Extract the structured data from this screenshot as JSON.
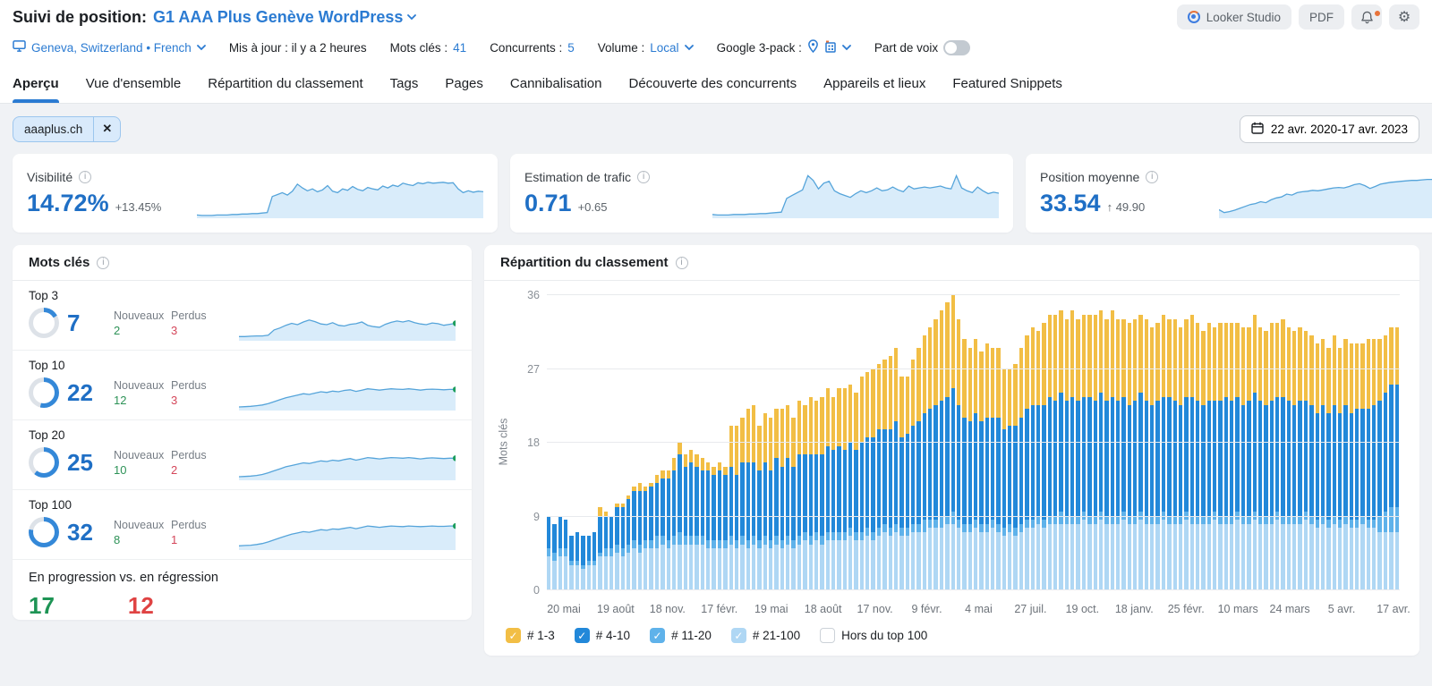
{
  "header": {
    "title_prefix": "Suivi de position:",
    "project_name": "G1 AAA Plus Genève WordPress",
    "looker_label": "Looker Studio",
    "pdf_label": "PDF"
  },
  "settings": {
    "location": "Geneva, Switzerland • French",
    "updated": "Mis à jour : il y a 2 heures",
    "keywords_label": "Mots clés :",
    "keywords_value": "41",
    "competitors_label": "Concurrents :",
    "competitors_value": "5",
    "volume_label": "Volume :",
    "volume_value": "Local",
    "google_pack_label": "Google 3-pack :",
    "voice_label": "Part de voix"
  },
  "tabs": [
    "Aperçu",
    "Vue d'ensemble",
    "Répartition du classement",
    "Tags",
    "Pages",
    "Cannibalisation",
    "Découverte des concurrents",
    "Appareils et lieux",
    "Featured Snippets"
  ],
  "filters": {
    "chip": "aaaplus.ch",
    "date_range": "22 avr. 2020-17 avr. 2023"
  },
  "metrics": [
    {
      "label": "Visibilité",
      "value": "14.72%",
      "delta": "+13.45%"
    },
    {
      "label": "Estimation de trafic",
      "value": "0.71",
      "delta": "+0.65"
    },
    {
      "label": "Position moyenne",
      "value": "33.54",
      "delta": "↑ 49.90"
    }
  ],
  "keywords_card": {
    "title": "Mots clés",
    "new_label": "Nouveaux",
    "lost_label": "Perdus",
    "rows": [
      {
        "label": "Top 3",
        "value": "7",
        "pct": 17,
        "new": "2",
        "lost": "3",
        "spark": [
          10,
          10,
          11,
          12,
          12,
          14,
          30,
          36,
          44,
          50,
          46,
          54,
          60,
          55,
          48,
          46,
          52,
          44,
          42,
          47,
          49,
          54,
          44,
          40,
          38,
          47,
          53,
          57,
          54,
          58,
          52,
          48,
          46,
          51,
          49,
          44,
          47,
          50
        ]
      },
      {
        "label": "Top 10",
        "value": "22",
        "pct": 54,
        "new": "12",
        "lost": "3",
        "spark": [
          8,
          9,
          10,
          12,
          14,
          18,
          24,
          30,
          36,
          40,
          44,
          48,
          46,
          50,
          54,
          52,
          56,
          54,
          58,
          60,
          55,
          59,
          63,
          61,
          59,
          61,
          63,
          62,
          61,
          63,
          61,
          59,
          61,
          62,
          61,
          60,
          61,
          61
        ]
      },
      {
        "label": "Top 20",
        "value": "25",
        "pct": 61,
        "new": "10",
        "lost": "2",
        "spark": [
          8,
          9,
          10,
          12,
          15,
          20,
          26,
          32,
          38,
          42,
          46,
          50,
          48,
          52,
          56,
          54,
          58,
          56,
          60,
          63,
          58,
          62,
          66,
          64,
          62,
          64,
          66,
          65,
          64,
          66,
          64,
          62,
          64,
          65,
          64,
          63,
          64,
          64
        ]
      },
      {
        "label": "Top 100",
        "value": "32",
        "pct": 78,
        "new": "8",
        "lost": "1",
        "spark": [
          10,
          11,
          12,
          14,
          17,
          22,
          28,
          34,
          40,
          45,
          49,
          53,
          51,
          55,
          59,
          57,
          61,
          60,
          63,
          66,
          62,
          66,
          70,
          68,
          66,
          68,
          70,
          69,
          68,
          70,
          69,
          68,
          69,
          70,
          69,
          69,
          70,
          70
        ]
      }
    ],
    "progress": {
      "label": "En progression vs. en régression",
      "up": "17",
      "down": "12",
      "up_pct": 59
    }
  },
  "metric_sparklines": [
    [
      5,
      4,
      4,
      4,
      5,
      5,
      5,
      6,
      6,
      7,
      7,
      8,
      8,
      9,
      10,
      44,
      48,
      52,
      47,
      55,
      70,
      62,
      56,
      60,
      54,
      58,
      67,
      55,
      52,
      60,
      57,
      65,
      59,
      56,
      63,
      60,
      58,
      66,
      62,
      68,
      65,
      72,
      69,
      67,
      73,
      71,
      74,
      72,
      73,
      74,
      72,
      73,
      60,
      52,
      56,
      53,
      55,
      54
    ],
    [
      6,
      5,
      5,
      5,
      6,
      6,
      6,
      7,
      7,
      8,
      8,
      9,
      10,
      11,
      40,
      46,
      52,
      58,
      88,
      78,
      60,
      72,
      76,
      56,
      50,
      46,
      42,
      50,
      56,
      52,
      56,
      62,
      56,
      58,
      64,
      58,
      54,
      66,
      60,
      62,
      64,
      62,
      64,
      66,
      62,
      60,
      88,
      62,
      56,
      52,
      64,
      56,
      50,
      53,
      51
    ],
    [
      16,
      10,
      12,
      15,
      19,
      23,
      27,
      29,
      33,
      31,
      37,
      41,
      43,
      49,
      47,
      52,
      54,
      55,
      57,
      56,
      58,
      60,
      62,
      63,
      62,
      65,
      69,
      71,
      67,
      61,
      65,
      70,
      72,
      74,
      75,
      76,
      77,
      78,
      78,
      79,
      80,
      80,
      81,
      81,
      82,
      81,
      81,
      80,
      80,
      79,
      80,
      80,
      79,
      78,
      79,
      78
    ]
  ],
  "chart_data": {
    "type": "bar",
    "title": "Répartition du classement",
    "ylabel": "Mots clés",
    "ymax": 36,
    "yticks": [
      0,
      9,
      18,
      27,
      36
    ],
    "grid": true,
    "legend_position": "bottom",
    "x_labels": [
      "20 mai",
      "19 août",
      "18 nov.",
      "17 févr.",
      "19 mai",
      "18 août",
      "17 nov.",
      "9 févr.",
      "4 mai",
      "27 juil.",
      "19 oct.",
      "18 janv.",
      "25 févr.",
      "10 mars",
      "24 mars",
      "5 avr.",
      "17 avr."
    ],
    "legend": [
      {
        "label": "# 1-3",
        "color": "#F2BE45",
        "checked": true
      },
      {
        "label": "# 4-10",
        "color": "#2288D9",
        "checked": true
      },
      {
        "label": "# 11-20",
        "color": "#5FB2EA",
        "checked": true
      },
      {
        "label": "# 21-100",
        "color": "#AFD7F4",
        "checked": true
      },
      {
        "label": "Hors du top 100",
        "color": "#FFFFFF",
        "checked": false
      }
    ],
    "stack_order_bottom_to_top": [
      "# 21-100",
      "# 11-20",
      "# 4-10",
      "# 1-3"
    ],
    "stack_colors": [
      "#AFD7F4",
      "#5FB2EA",
      "#2288D9",
      "#F2BE45"
    ],
    "bars": [
      [
        4,
        1,
        4,
        0
      ],
      [
        3.5,
        1,
        3.5,
        0
      ],
      [
        4,
        1,
        4,
        0
      ],
      [
        4,
        1,
        3.5,
        0
      ],
      [
        3,
        0.5,
        3,
        0
      ],
      [
        3,
        0.5,
        3.5,
        0
      ],
      [
        2.5,
        0.5,
        3.5,
        0
      ],
      [
        3,
        0.5,
        3,
        0
      ],
      [
        3,
        0.5,
        3.5,
        0
      ],
      [
        4,
        0.5,
        4.5,
        1
      ],
      [
        4,
        1,
        4,
        0.5
      ],
      [
        4,
        1,
        4,
        0
      ],
      [
        4.5,
        1,
        4.5,
        0.5
      ],
      [
        4,
        1,
        5,
        0.5
      ],
      [
        4.5,
        1,
        5.5,
        0.5
      ],
      [
        5,
        1,
        6,
        0.5
      ],
      [
        4.5,
        1,
        6.5,
        1
      ],
      [
        5,
        1,
        6,
        0.5
      ],
      [
        5,
        1,
        6.5,
        0.5
      ],
      [
        5,
        1.5,
        6.5,
        1
      ],
      [
        5.5,
        1,
        7,
        1
      ],
      [
        5,
        1,
        7.5,
        1
      ],
      [
        5.5,
        1,
        8,
        1.5
      ],
      [
        5.5,
        1.5,
        9.5,
        1.5
      ],
      [
        5.5,
        1,
        8.5,
        1.5
      ],
      [
        5.5,
        1,
        9,
        1.5
      ],
      [
        5.5,
        1,
        8.5,
        1.5
      ],
      [
        5.5,
        1,
        8,
        1.5
      ],
      [
        5,
        1,
        8.5,
        1
      ],
      [
        5,
        1,
        8,
        1
      ],
      [
        5,
        1,
        8.5,
        1
      ],
      [
        5,
        1,
        8,
        1
      ],
      [
        5.5,
        1,
        8.5,
        5
      ],
      [
        5,
        1,
        8,
        6
      ],
      [
        5.5,
        1,
        9,
        5.5
      ],
      [
        5,
        1,
        9.5,
        6.5
      ],
      [
        5.5,
        1,
        9,
        7
      ],
      [
        5,
        1,
        8.5,
        5.5
      ],
      [
        5.5,
        1,
        9,
        6
      ],
      [
        5,
        1,
        8.5,
        6.5
      ],
      [
        5.5,
        1,
        9.5,
        6
      ],
      [
        5,
        1,
        9,
        7
      ],
      [
        5.5,
        1,
        9.5,
        6.5
      ],
      [
        5,
        1,
        9,
        6
      ],
      [
        5.5,
        1,
        10,
        6.5
      ],
      [
        6,
        1,
        9.5,
        6
      ],
      [
        5.5,
        1,
        10,
        7
      ],
      [
        6,
        1,
        9.5,
        6.5
      ],
      [
        5.5,
        1,
        10,
        7
      ],
      [
        6,
        1,
        10.5,
        7
      ],
      [
        6,
        1,
        10,
        6.5
      ],
      [
        6,
        1,
        10.5,
        7
      ],
      [
        6,
        1,
        10,
        7.5
      ],
      [
        6.5,
        1,
        10.5,
        7
      ],
      [
        6,
        1,
        10,
        7
      ],
      [
        6,
        1,
        11,
        8
      ],
      [
        6.5,
        1,
        11,
        8
      ],
      [
        6,
        1,
        11.5,
        8.5
      ],
      [
        6.5,
        1,
        12,
        8
      ],
      [
        7,
        1,
        11.5,
        8.5
      ],
      [
        6.5,
        1,
        12,
        9
      ],
      [
        7,
        1,
        12.5,
        9
      ],
      [
        6.5,
        1,
        11,
        7.5
      ],
      [
        6.5,
        1,
        11.5,
        7
      ],
      [
        7,
        1,
        12,
        8
      ],
      [
        7,
        1,
        12.5,
        9
      ],
      [
        7,
        1.5,
        13,
        9.5
      ],
      [
        7.5,
        1,
        13.5,
        10
      ],
      [
        7.5,
        1,
        14,
        10.5
      ],
      [
        7.5,
        1.5,
        14,
        11
      ],
      [
        8,
        1,
        14.5,
        11.5
      ],
      [
        8,
        1.5,
        15,
        11.5
      ],
      [
        7.5,
        1,
        14,
        10.5
      ],
      [
        7,
        1,
        13,
        9.5
      ],
      [
        7,
        1,
        12.5,
        9
      ],
      [
        7.5,
        1,
        13,
        9
      ],
      [
        7,
        1,
        12.5,
        8.5
      ],
      [
        7,
        1,
        13,
        9
      ],
      [
        7.5,
        1,
        12.5,
        8.5
      ],
      [
        7,
        1,
        13,
        8.5
      ],
      [
        6.5,
        1,
        12,
        7.5
      ],
      [
        7,
        1,
        12,
        7
      ],
      [
        6.5,
        1,
        12.5,
        7.5
      ],
      [
        7,
        1,
        13,
        8.5
      ],
      [
        7.5,
        1,
        13.5,
        9
      ],
      [
        7.5,
        1,
        14,
        9.5
      ],
      [
        8,
        1,
        13.5,
        9
      ],
      [
        7.5,
        1,
        14,
        10
      ],
      [
        8,
        1,
        14.5,
        10
      ],
      [
        8,
        1,
        14,
        10.5
      ],
      [
        8,
        1.5,
        14.5,
        10
      ],
      [
        8,
        1,
        14,
        10
      ],
      [
        8,
        1,
        14.5,
        10.5
      ],
      [
        8,
        1,
        14,
        10
      ],
      [
        8.5,
        1,
        14,
        10
      ],
      [
        8,
        1,
        14.5,
        10
      ],
      [
        8,
        1,
        14,
        10.5
      ],
      [
        8.5,
        1,
        14.5,
        10
      ],
      [
        8,
        1,
        14,
        10
      ],
      [
        8,
        1,
        14.5,
        10.5
      ],
      [
        8,
        1,
        14,
        10
      ],
      [
        8.5,
        1,
        14,
        9.5
      ],
      [
        8,
        1,
        13.5,
        10
      ],
      [
        8,
        1,
        14,
        10
      ],
      [
        8.5,
        1,
        14.5,
        9.5
      ],
      [
        8,
        1,
        14,
        10
      ],
      [
        8,
        1,
        13.5,
        9.5
      ],
      [
        8,
        1,
        14,
        9.5
      ],
      [
        8.5,
        1,
        14,
        10
      ],
      [
        8,
        1,
        14.5,
        9.5
      ],
      [
        8,
        1,
        14,
        10
      ],
      [
        8,
        1,
        13.5,
        9.5
      ],
      [
        8.5,
        1,
        14,
        9.5
      ],
      [
        8,
        1,
        14.5,
        10
      ],
      [
        8,
        1,
        14,
        9.5
      ],
      [
        8,
        1,
        13.5,
        9
      ],
      [
        8,
        1,
        14,
        9.5
      ],
      [
        8.5,
        1,
        13.5,
        9
      ],
      [
        8,
        1,
        14,
        9.5
      ],
      [
        8,
        1,
        14.5,
        9
      ],
      [
        8,
        1,
        14,
        9.5
      ],
      [
        8.5,
        1,
        14,
        9
      ],
      [
        8,
        1,
        13.5,
        9.5
      ],
      [
        8,
        1,
        14,
        9
      ],
      [
        8.5,
        1,
        14.5,
        9.5
      ],
      [
        8,
        1,
        14,
        9
      ],
      [
        8,
        1,
        13.5,
        9
      ],
      [
        8,
        1,
        14,
        9.5
      ],
      [
        8.5,
        1,
        14,
        9
      ],
      [
        8,
        1,
        14.5,
        9.5
      ],
      [
        8,
        1,
        14,
        9
      ],
      [
        8,
        1,
        13.5,
        9
      ],
      [
        8,
        1,
        14,
        9
      ],
      [
        8.5,
        1,
        13.5,
        8.5
      ],
      [
        8,
        1,
        13.5,
        8.5
      ],
      [
        7.5,
        1,
        13,
        8.5
      ],
      [
        8,
        1,
        13.5,
        8
      ],
      [
        7.5,
        1,
        13,
        8
      ],
      [
        8,
        1,
        13.5,
        8.5
      ],
      [
        7.5,
        1,
        13,
        8
      ],
      [
        8,
        1,
        13.5,
        8
      ],
      [
        7.5,
        1,
        13,
        8.5
      ],
      [
        7.5,
        1,
        13.5,
        8
      ],
      [
        8,
        1,
        13,
        8
      ],
      [
        7.5,
        1,
        13.5,
        8.5
      ],
      [
        7.5,
        1,
        14,
        8
      ],
      [
        7,
        2,
        14,
        7.5
      ],
      [
        7,
        2.5,
        14.5,
        7
      ],
      [
        7,
        3,
        15,
        7
      ],
      [
        7,
        3,
        15,
        7
      ]
    ]
  },
  "colors": {
    "accent_blue": "#2b7bd2",
    "metric_blue": "#1f6fc5",
    "spark_line": "#55a4da",
    "spark_fill": "#d9ecfa",
    "green": "#1e9455",
    "red": "#df4343",
    "donut_blue": "#3488d8",
    "donut_track": "#dde2e8"
  }
}
